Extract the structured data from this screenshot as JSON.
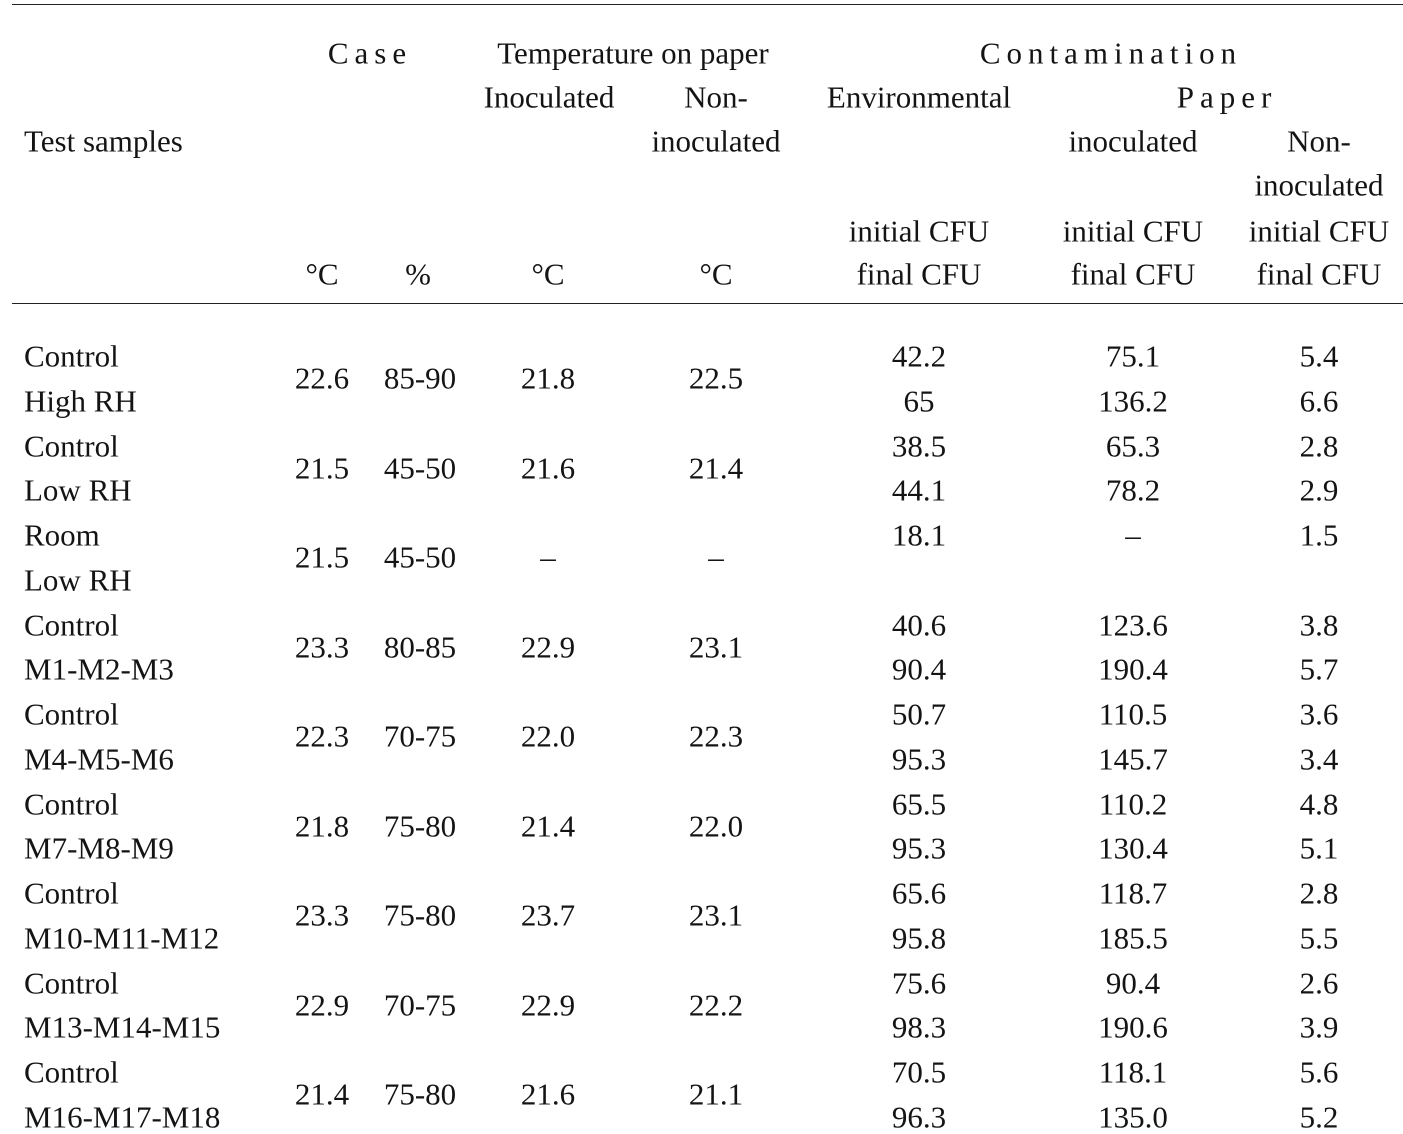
{
  "header": {
    "case_label": "Case",
    "temp_on_paper_label": "Temperature on paper",
    "contamination_label": "Contamination",
    "inoculated_label": "Inoculated",
    "non_label": "Non-",
    "environmental_label": "Environmental",
    "paper_label": "Paper",
    "test_samples_label": "Test samples",
    "inoculated_lower_label": "inoculated",
    "non_inoculated_cont_label": "inoculated",
    "paper_inoculated_label": "inoculated",
    "paper_non_label": "Non-",
    "paper_non_inoculated_label": "inoculated",
    "initial_cfu_env": "initial CFU",
    "initial_cfu_inoc": "initial CFU",
    "initial_cfu_noninoc": "initial CFU",
    "unit_case_temp": "°C",
    "unit_case_rh": "%",
    "unit_inoc_temp": "°C",
    "unit_noninoc_temp": "°C",
    "final_cfu_env": "final CFU",
    "final_cfu_inoc": "final CFU",
    "final_cfu_noninoc": "final CFU"
  },
  "rows": [
    {
      "line1": "Control",
      "line2": "High RH",
      "case_temp": "22.6",
      "case_rh": "85-90",
      "temp_inoc": "21.8",
      "temp_noninoc": "22.5",
      "env_initial": "42.2",
      "env_final": "65",
      "inoc_initial": "75.1",
      "inoc_final": "136.2",
      "noninoc_initial": "5.4",
      "noninoc_final": "6.6"
    },
    {
      "line1": "Control",
      "line2": "Low RH",
      "case_temp": "21.5",
      "case_rh": "45-50",
      "temp_inoc": "21.6",
      "temp_noninoc": "21.4",
      "env_initial": "38.5",
      "env_final": "44.1",
      "inoc_initial": "65.3",
      "inoc_final": "78.2",
      "noninoc_initial": "2.8",
      "noninoc_final": "2.9"
    },
    {
      "line1": "Room",
      "line2": "Low RH",
      "case_temp": "21.5",
      "case_rh": "45-50",
      "temp_inoc": "–",
      "temp_noninoc": "–",
      "env_initial": "18.1",
      "env_final": "",
      "inoc_initial": "–",
      "inoc_final": "",
      "noninoc_initial": "1.5",
      "noninoc_final": ""
    },
    {
      "line1": "Control",
      "line2": "M1-M2-M3",
      "case_temp": "23.3",
      "case_rh": "80-85",
      "temp_inoc": "22.9",
      "temp_noninoc": "23.1",
      "env_initial": "40.6",
      "env_final": "90.4",
      "inoc_initial": "123.6",
      "inoc_final": "190.4",
      "noninoc_initial": "3.8",
      "noninoc_final": "5.7"
    },
    {
      "line1": "Control",
      "line2": "M4-M5-M6",
      "case_temp": "22.3",
      "case_rh": "70-75",
      "temp_inoc": "22.0",
      "temp_noninoc": "22.3",
      "env_initial": "50.7",
      "env_final": "95.3",
      "inoc_initial": "110.5",
      "inoc_final": "145.7",
      "noninoc_initial": "3.6",
      "noninoc_final": "3.4"
    },
    {
      "line1": "Control",
      "line2": "M7-M8-M9",
      "case_temp": "21.8",
      "case_rh": "75-80",
      "temp_inoc": "21.4",
      "temp_noninoc": "22.0",
      "env_initial": "65.5",
      "env_final": "95.3",
      "inoc_initial": "110.2",
      "inoc_final": "130.4",
      "noninoc_initial": "4.8",
      "noninoc_final": "5.1"
    },
    {
      "line1": "Control",
      "line2": "M10-M11-M12",
      "case_temp": "23.3",
      "case_rh": "75-80",
      "temp_inoc": "23.7",
      "temp_noninoc": "23.1",
      "env_initial": "65.6",
      "env_final": "95.8",
      "inoc_initial": "118.7",
      "inoc_final": "185.5",
      "noninoc_initial": "2.8",
      "noninoc_final": "5.5"
    },
    {
      "line1": "Control",
      "line2": "M13-M14-M15",
      "case_temp": "22.9",
      "case_rh": "70-75",
      "temp_inoc": "22.9",
      "temp_noninoc": "22.2",
      "env_initial": "75.6",
      "env_final": "98.3",
      "inoc_initial": "90.4",
      "inoc_final": "190.6",
      "noninoc_initial": "2.6",
      "noninoc_final": "3.9"
    },
    {
      "line1": "Control",
      "line2": "M16-M17-M18",
      "case_temp": "21.4",
      "case_rh": "75-80",
      "temp_inoc": "21.6",
      "temp_noninoc": "21.1",
      "env_initial": "70.5",
      "env_final": "96.3",
      "inoc_initial": "118.1",
      "inoc_final": "135.0",
      "noninoc_initial": "5.6",
      "noninoc_final": "5.2"
    }
  ]
}
